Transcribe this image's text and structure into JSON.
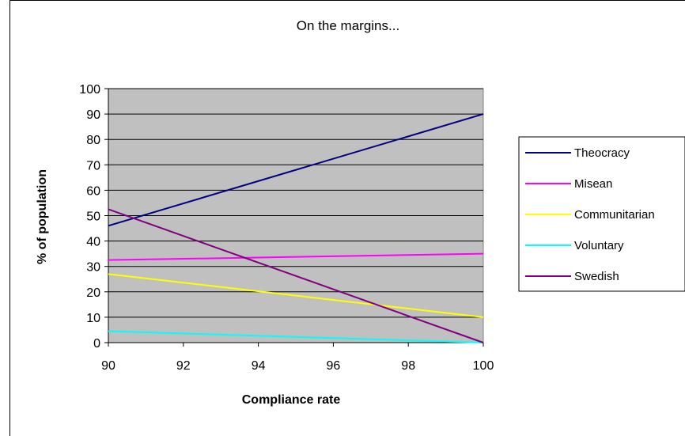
{
  "chart_data": {
    "type": "line",
    "title": "On the margins...",
    "xlabel": "Compliance rate",
    "ylabel": "% of population",
    "xlim": [
      90,
      100
    ],
    "ylim": [
      0,
      100
    ],
    "x_ticks": [
      "90",
      "92",
      "94",
      "96",
      "98",
      "100"
    ],
    "y_ticks": [
      "0",
      "10",
      "20",
      "30",
      "40",
      "50",
      "60",
      "70",
      "80",
      "90",
      "100"
    ],
    "grid": true,
    "legend_position": "right",
    "plot_background": "#c0c0c0",
    "series": [
      {
        "name": "Theocracy",
        "color": "#000080",
        "x": [
          90,
          100
        ],
        "y": [
          46,
          90
        ]
      },
      {
        "name": "Misean",
        "color": "#ff00ff",
        "x": [
          90,
          100
        ],
        "y": [
          32.5,
          35
        ]
      },
      {
        "name": "Communitarian",
        "color": "#ffff00",
        "x": [
          90,
          100
        ],
        "y": [
          27,
          10
        ]
      },
      {
        "name": "Voluntary",
        "color": "#00ffff",
        "x": [
          90,
          100
        ],
        "y": [
          4.5,
          0
        ]
      },
      {
        "name": "Swedish",
        "color": "#800080",
        "x": [
          90,
          100
        ],
        "y": [
          52.5,
          0
        ]
      }
    ]
  }
}
